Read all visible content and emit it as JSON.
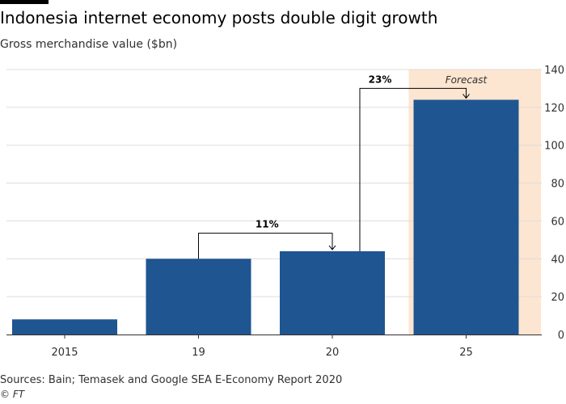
{
  "header": {
    "title": "Indonesia internet economy posts double digit growth",
    "subtitle": "Gross merchandise value ($bn)"
  },
  "footer": {
    "source": "Sources: Bain; Temasek and Google SEA E-Economy Report 2020",
    "credit": "© FT"
  },
  "colors": {
    "bar": "#1f5591",
    "forecast_band": "#fce5d1",
    "grid": "#e0dcd8",
    "axis": "#33302e",
    "background": "#ffffff"
  },
  "chart_data": {
    "type": "bar",
    "title": "Indonesia internet economy posts double digit growth",
    "subtitle": "Gross merchandise value ($bn)",
    "xlabel": "",
    "ylabel": "",
    "categories": [
      "2015",
      "19",
      "20",
      "25"
    ],
    "values": [
      8,
      40,
      44,
      124
    ],
    "ylim": [
      0,
      140
    ],
    "yticks": [
      0,
      20,
      40,
      60,
      80,
      100,
      120,
      140
    ],
    "y_axis_side": "right",
    "grid": true,
    "forecast": {
      "label": "Forecast",
      "category": "25"
    },
    "annotations": [
      {
        "text": "11%",
        "from": "19",
        "to": "20"
      },
      {
        "text": "23%",
        "from": "20",
        "to": "25"
      }
    ]
  }
}
